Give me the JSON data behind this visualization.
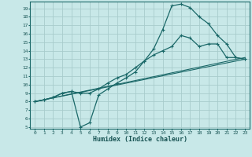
{
  "xlabel": "Humidex (Indice chaleur)",
  "bg_color": "#c8e8e8",
  "grid_color": "#a8cccc",
  "line_color": "#1a6868",
  "xlim": [
    -0.5,
    23.5
  ],
  "ylim": [
    4.8,
    19.8
  ],
  "xticks": [
    0,
    1,
    2,
    3,
    4,
    5,
    6,
    7,
    8,
    9,
    10,
    11,
    12,
    13,
    14,
    15,
    16,
    17,
    18,
    19,
    20,
    21,
    22,
    23
  ],
  "yticks": [
    5,
    6,
    7,
    8,
    9,
    10,
    11,
    12,
    13,
    14,
    15,
    16,
    17,
    18,
    19
  ],
  "line1_x": [
    0,
    1,
    2,
    3,
    4,
    5,
    6,
    7,
    8,
    9,
    10,
    11,
    12,
    13,
    14,
    15,
    16,
    17,
    18,
    19,
    20,
    21,
    22,
    23
  ],
  "line1_y": [
    8.0,
    8.2,
    8.5,
    9.0,
    9.2,
    5.0,
    5.5,
    8.8,
    9.5,
    10.2,
    10.8,
    11.5,
    12.8,
    14.2,
    16.5,
    19.3,
    19.5,
    19.1,
    18.0,
    17.2,
    15.8,
    14.8,
    13.2,
    13.0
  ],
  "line2_x": [
    0,
    1,
    2,
    3,
    4,
    5,
    6,
    7,
    8,
    9,
    10,
    11,
    12,
    13,
    14,
    15,
    16,
    17,
    18,
    19,
    20,
    21,
    22,
    23
  ],
  "line2_y": [
    8.0,
    8.2,
    8.5,
    9.0,
    9.2,
    9.0,
    9.0,
    9.5,
    10.2,
    10.8,
    11.2,
    12.0,
    12.8,
    13.5,
    14.0,
    14.5,
    15.8,
    15.5,
    14.5,
    14.8,
    14.8,
    13.2,
    13.2,
    13.0
  ],
  "line3_x": [
    0,
    23
  ],
  "line3_y": [
    8.0,
    13.2
  ],
  "line4_x": [
    0,
    23
  ],
  "line4_y": [
    8.0,
    13.0
  ],
  "marker_size": 2.5
}
